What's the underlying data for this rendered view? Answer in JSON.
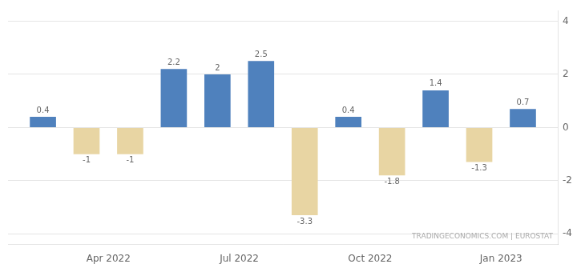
{
  "chart_data": {
    "type": "bar",
    "x": [
      1,
      2,
      3,
      4,
      5,
      6,
      7,
      8,
      9,
      10,
      11,
      12
    ],
    "values": [
      0.4,
      -1.0,
      -1.0,
      2.2,
      2.0,
      2.5,
      -3.3,
      0.4,
      -1.8,
      1.4,
      -1.3,
      0.7
    ],
    "colors": [
      "#4f81bd",
      "#e8d5a3",
      "#e8d5a3",
      "#4f81bd",
      "#4f81bd",
      "#4f81bd",
      "#e8d5a3",
      "#4f81bd",
      "#e8d5a3",
      "#4f81bd",
      "#e8d5a3",
      "#4f81bd"
    ],
    "xlim": [
      0.2,
      12.8
    ],
    "xticks": [
      {
        "value": 2.5,
        "label": "Apr 2022"
      },
      {
        "value": 5.5,
        "label": "Jul 2022"
      },
      {
        "value": 8.5,
        "label": "Oct 2022"
      },
      {
        "value": 11.5,
        "label": "Jan 2023"
      }
    ],
    "ylim": [
      -4.4,
      4.4
    ],
    "yticks": [
      -4,
      -2,
      0,
      2,
      4
    ],
    "grid": true,
    "data_labels": true,
    "annotation": "TRADINGECONOMICS.COM | EUROSTAT"
  }
}
